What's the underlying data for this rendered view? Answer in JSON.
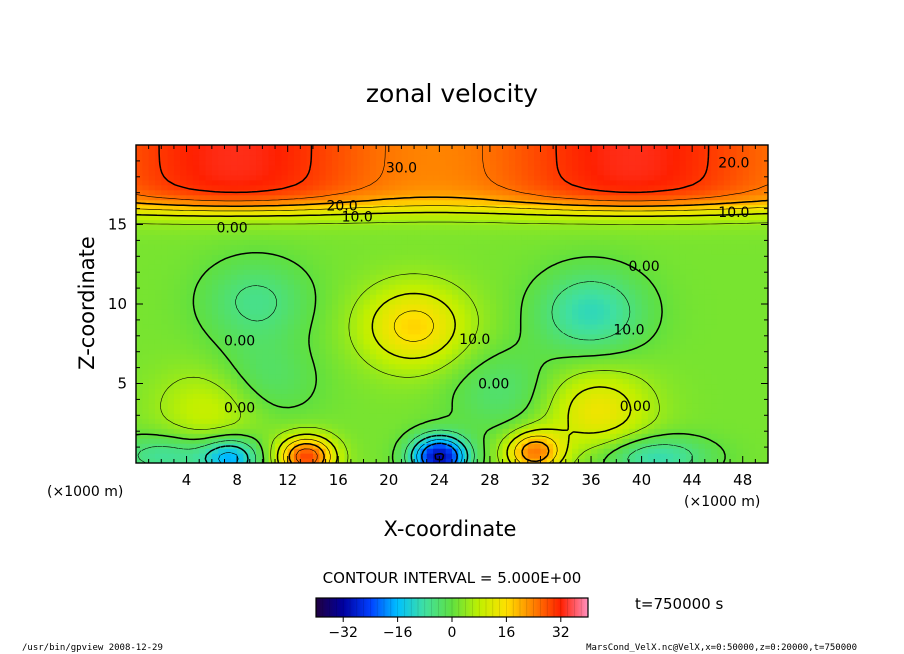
{
  "chart_data": {
    "type": "heatmap",
    "title": "zonal velocity",
    "xlabel": "X-coordinate",
    "ylabel": "Z-coordinate",
    "x_unit_label": "(×1000 m)",
    "y_unit_label": "(×1000 m)",
    "xlim": [
      0,
      50
    ],
    "ylim": [
      0,
      20
    ],
    "x_ticks": [
      4,
      8,
      12,
      16,
      20,
      24,
      28,
      32,
      36,
      40,
      44,
      48
    ],
    "y_ticks": [
      5,
      10,
      15
    ],
    "contour_interval_text": "CONTOUR INTERVAL = 5.000E+00",
    "time_text": "t=750000 s",
    "colorbar": {
      "range": [
        -40,
        40
      ],
      "ticks": [
        -32,
        -16,
        0,
        16,
        32
      ],
      "colors": [
        "#200040",
        "#0000a0",
        "#0040ff",
        "#00c0ff",
        "#40e0a0",
        "#60e040",
        "#c0f000",
        "#ffe000",
        "#ff8000",
        "#ff2000",
        "#ff90c0"
      ]
    },
    "contour_labels": [
      {
        "text": "30.0",
        "x": 21,
        "y": 18.6
      },
      {
        "text": "20.0",
        "x": 16.3,
        "y": 16.2
      },
      {
        "text": "10.0",
        "x": 17.5,
        "y": 15.5
      },
      {
        "text": "0.00",
        "x": 7.6,
        "y": 14.8
      },
      {
        "text": "20.0",
        "x": 47.3,
        "y": 18.9
      },
      {
        "text": "10.0",
        "x": 47.3,
        "y": 15.8
      },
      {
        "text": "0.00",
        "x": 8.2,
        "y": 7.7
      },
      {
        "text": "0.00",
        "x": 8.2,
        "y": 3.5
      },
      {
        "text": "10.0",
        "x": 26.8,
        "y": 7.8
      },
      {
        "text": "0.00",
        "x": 28.3,
        "y": 5.0
      },
      {
        "text": "0.00",
        "x": 40.2,
        "y": 12.4
      },
      {
        "text": "10.0",
        "x": 39.0,
        "y": 8.4
      },
      {
        "text": "0.00",
        "x": 39.5,
        "y": 3.6
      }
    ],
    "features": [
      {
        "type": "jet",
        "zmin": 16,
        "zmax": 20,
        "peak": 33
      },
      {
        "type": "max",
        "x": 22,
        "z": 8.6,
        "value": 15
      },
      {
        "type": "min",
        "x": 36,
        "z": 9.5,
        "value": -12
      },
      {
        "type": "min",
        "x": 9.5,
        "z": 10.2,
        "value": -8
      },
      {
        "type": "min",
        "x": 10,
        "z": 5.2,
        "value": -6
      },
      {
        "type": "max",
        "x": 36.5,
        "z": 3.3,
        "value": 12
      },
      {
        "type": "max",
        "x": 6,
        "z": 3.5,
        "value": 8
      },
      {
        "type": "max",
        "x": 13.5,
        "z": 0.4,
        "value": 27
      },
      {
        "type": "max",
        "x": 31.5,
        "z": 0.7,
        "value": 22
      },
      {
        "type": "min",
        "x": 24,
        "z": 0.4,
        "value": -33
      },
      {
        "type": "min",
        "x": 7.5,
        "z": 0.3,
        "value": -18
      },
      {
        "type": "min",
        "x": 41,
        "z": 0.4,
        "value": -12
      },
      {
        "type": "min",
        "x": 2.5,
        "z": 0.5,
        "value": -10
      },
      {
        "type": "min",
        "x": 29,
        "z": 4.5,
        "value": -6
      }
    ]
  },
  "footer": {
    "left": "/usr/bin/gpview  2008-12-29",
    "right": "MarsCond_VelX.nc@VelX,x=0:50000,z=0:20000,t=750000"
  }
}
